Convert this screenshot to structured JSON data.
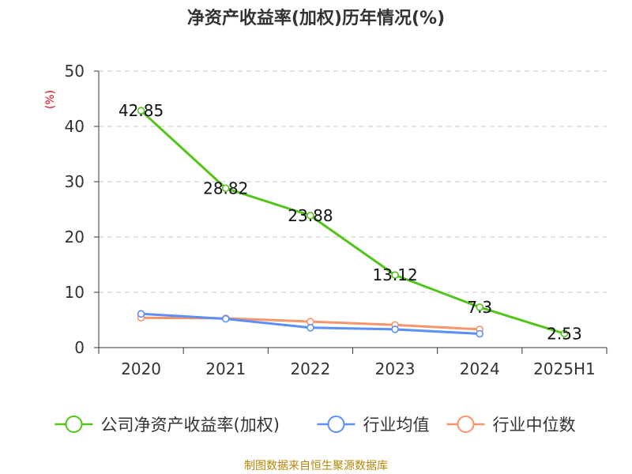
{
  "chart_data": {
    "type": "line",
    "title": "净资产收益率(加权)历年情况(%)",
    "ylabel": "(%)",
    "xlabel": "",
    "ylim": [
      0,
      50
    ],
    "yticks": [
      0,
      10,
      20,
      30,
      40,
      50
    ],
    "categories": [
      "2020",
      "2021",
      "2022",
      "2023",
      "2024",
      "2025H1"
    ],
    "grid": true,
    "legend_position": "bottom",
    "series": [
      {
        "name": "公司净资产收益率(加权)",
        "color": "#52c41a",
        "values": [
          42.85,
          28.82,
          23.88,
          13.12,
          7.3,
          2.53
        ],
        "labels": [
          "42.85",
          "28.82",
          "23.88",
          "13.12",
          "7.3",
          "2.53"
        ]
      },
      {
        "name": "行业均值",
        "color": "#5b8ff9",
        "values": [
          6.1,
          5.2,
          3.6,
          3.3,
          2.5,
          null
        ]
      },
      {
        "name": "行业中位数",
        "color": "#f6956a",
        "values": [
          5.4,
          5.3,
          4.7,
          4.1,
          3.3,
          null
        ]
      }
    ]
  },
  "source": "制图数据来自恒生聚源数据库"
}
